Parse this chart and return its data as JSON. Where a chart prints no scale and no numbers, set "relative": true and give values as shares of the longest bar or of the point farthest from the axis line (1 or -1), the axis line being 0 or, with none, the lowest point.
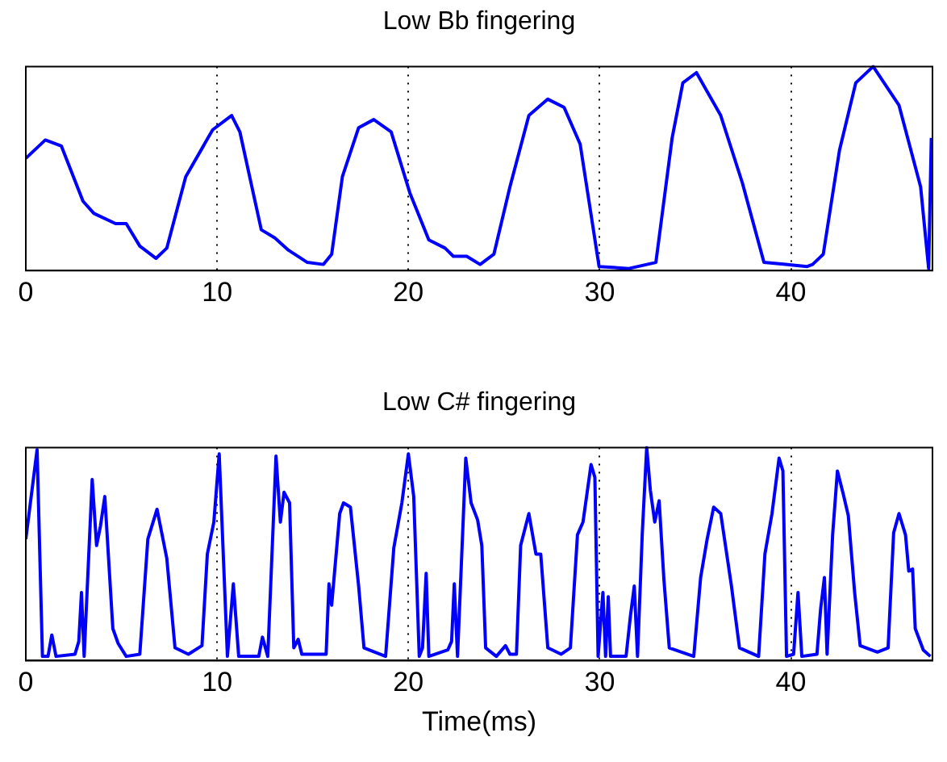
{
  "chart_data": [
    {
      "type": "line",
      "title": "Low Bb fingering",
      "relative": true,
      "xlim": [
        0,
        47.4
      ],
      "xticks": [
        0,
        10,
        20,
        30,
        40
      ],
      "grid": "x",
      "tick_labels": "x",
      "marker": "none",
      "line_style": "solid",
      "series": [
        {
          "color": "#0000ff",
          "x": [
            0,
            1.02,
            1.86,
            2.99,
            3.56,
            4.69,
            5.25,
            5.96,
            6.81,
            7.37,
            8.36,
            9.77,
            10.76,
            11.19,
            12.31,
            13.02,
            13.73,
            14.72,
            15.56,
            15.99,
            16.55,
            17.4,
            18.19,
            19.1,
            20.08,
            21.07,
            21.92,
            22.35,
            23.05,
            23.75,
            24.47,
            25.31,
            26.3,
            27.29,
            28.14,
            28.98,
            29.97,
            31.53,
            32.94,
            33.79,
            34.35,
            35.06,
            36.33,
            37.46,
            38.59,
            39.72,
            40.85,
            41.13,
            41.69,
            42.54,
            43.39,
            44.3,
            45.65,
            46.78,
            47.2,
            47.34
          ],
          "values": [
            0.55,
            0.64,
            0.61,
            0.34,
            0.28,
            0.23,
            0.23,
            0.12,
            0.06,
            0.11,
            0.46,
            0.69,
            0.76,
            0.68,
            0.2,
            0.16,
            0.1,
            0.04,
            0.03,
            0.08,
            0.46,
            0.7,
            0.74,
            0.68,
            0.38,
            0.15,
            0.11,
            0.07,
            0.07,
            0.03,
            0.08,
            0.41,
            0.76,
            0.84,
            0.8,
            0.62,
            0.02,
            0.01,
            0.04,
            0.65,
            0.92,
            0.97,
            0.76,
            0.43,
            0.04,
            0.03,
            0.02,
            0.03,
            0.08,
            0.59,
            0.92,
            1.0,
            0.81,
            0.41,
            0.01,
            0.65
          ]
        }
      ]
    },
    {
      "type": "line",
      "title": "Low C# fingering",
      "xlabel": "Time(ms)",
      "relative": true,
      "xlim": [
        0,
        47.4
      ],
      "xticks": [
        0,
        10,
        20,
        30,
        40
      ],
      "grid": "x",
      "tick_labels": "x",
      "marker": "none",
      "line_style": "solid",
      "series": [
        {
          "color": "#0000ff",
          "x": [
            0,
            0.59,
            0.87,
            1.16,
            1.36,
            1.58,
            2.57,
            2.77,
            2.91,
            3.05,
            3.47,
            3.7,
            3.9,
            4.13,
            4.55,
            4.83,
            5.25,
            5.96,
            6.38,
            6.86,
            7.37,
            7.8,
            8.5,
            9.21,
            9.49,
            9.83,
            10.11,
            10.54,
            10.85,
            11.13,
            12.18,
            12.37,
            12.65,
            13.08,
            13.31,
            13.5,
            13.79,
            14.01,
            14.24,
            14.43,
            15.7,
            15.85,
            15.99,
            16.41,
            16.61,
            16.97,
            17.4,
            17.68,
            18.81,
            19.24,
            19.66,
            20.0,
            20.28,
            20.57,
            20.74,
            20.93,
            21.07,
            22.06,
            22.26,
            22.4,
            22.57,
            23.0,
            23.28,
            23.62,
            23.84,
            24.04,
            24.6,
            25.08,
            25.31,
            25.65,
            25.87,
            26.3,
            26.67,
            26.92,
            27.29,
            27.99,
            28.47,
            28.84,
            29.13,
            29.55,
            29.75,
            29.92,
            30.17,
            30.31,
            30.45,
            30.57,
            31.38,
            31.61,
            31.81,
            31.98,
            32.23,
            32.46,
            32.65,
            32.88,
            33.11,
            33.36,
            33.64,
            34.92,
            35.28,
            35.62,
            35.96,
            36.33,
            36.89,
            37.31,
            38.31,
            38.64,
            39.01,
            39.38,
            39.58,
            39.77,
            40.14,
            40.37,
            40.57,
            41.36,
            41.55,
            41.75,
            41.89,
            42.18,
            42.43,
            42.74,
            43.0,
            43.33,
            43.62,
            44.52,
            45.08,
            45.37,
            45.65,
            45.99,
            46.16,
            46.36,
            46.5,
            46.92,
            47.29
          ],
          "values": [
            0.57,
            0.99,
            0.02,
            0.02,
            0.12,
            0.02,
            0.03,
            0.09,
            0.32,
            0.02,
            0.85,
            0.54,
            0.63,
            0.77,
            0.15,
            0.08,
            0.02,
            0.03,
            0.57,
            0.71,
            0.48,
            0.06,
            0.03,
            0.07,
            0.5,
            0.65,
            0.97,
            0.02,
            0.36,
            0.02,
            0.02,
            0.11,
            0.02,
            0.96,
            0.65,
            0.79,
            0.74,
            0.06,
            0.1,
            0.03,
            0.03,
            0.36,
            0.26,
            0.69,
            0.74,
            0.72,
            0.35,
            0.06,
            0.02,
            0.53,
            0.74,
            0.97,
            0.77,
            0.02,
            0.06,
            0.41,
            0.02,
            0.05,
            0.09,
            0.36,
            0.02,
            0.95,
            0.74,
            0.66,
            0.54,
            0.06,
            0.02,
            0.07,
            0.03,
            0.03,
            0.54,
            0.69,
            0.5,
            0.5,
            0.06,
            0.03,
            0.06,
            0.59,
            0.65,
            0.92,
            0.86,
            0.02,
            0.32,
            0.02,
            0.3,
            0.02,
            0.02,
            0.21,
            0.35,
            0.02,
            0.6,
            1.0,
            0.8,
            0.65,
            0.75,
            0.38,
            0.06,
            0.02,
            0.39,
            0.57,
            0.72,
            0.69,
            0.35,
            0.06,
            0.02,
            0.5,
            0.69,
            0.95,
            0.89,
            0.02,
            0.03,
            0.32,
            0.02,
            0.03,
            0.24,
            0.39,
            0.03,
            0.59,
            0.89,
            0.78,
            0.68,
            0.32,
            0.07,
            0.04,
            0.06,
            0.6,
            0.69,
            0.59,
            0.42,
            0.43,
            0.15,
            0.05,
            0.02
          ]
        }
      ]
    }
  ]
}
